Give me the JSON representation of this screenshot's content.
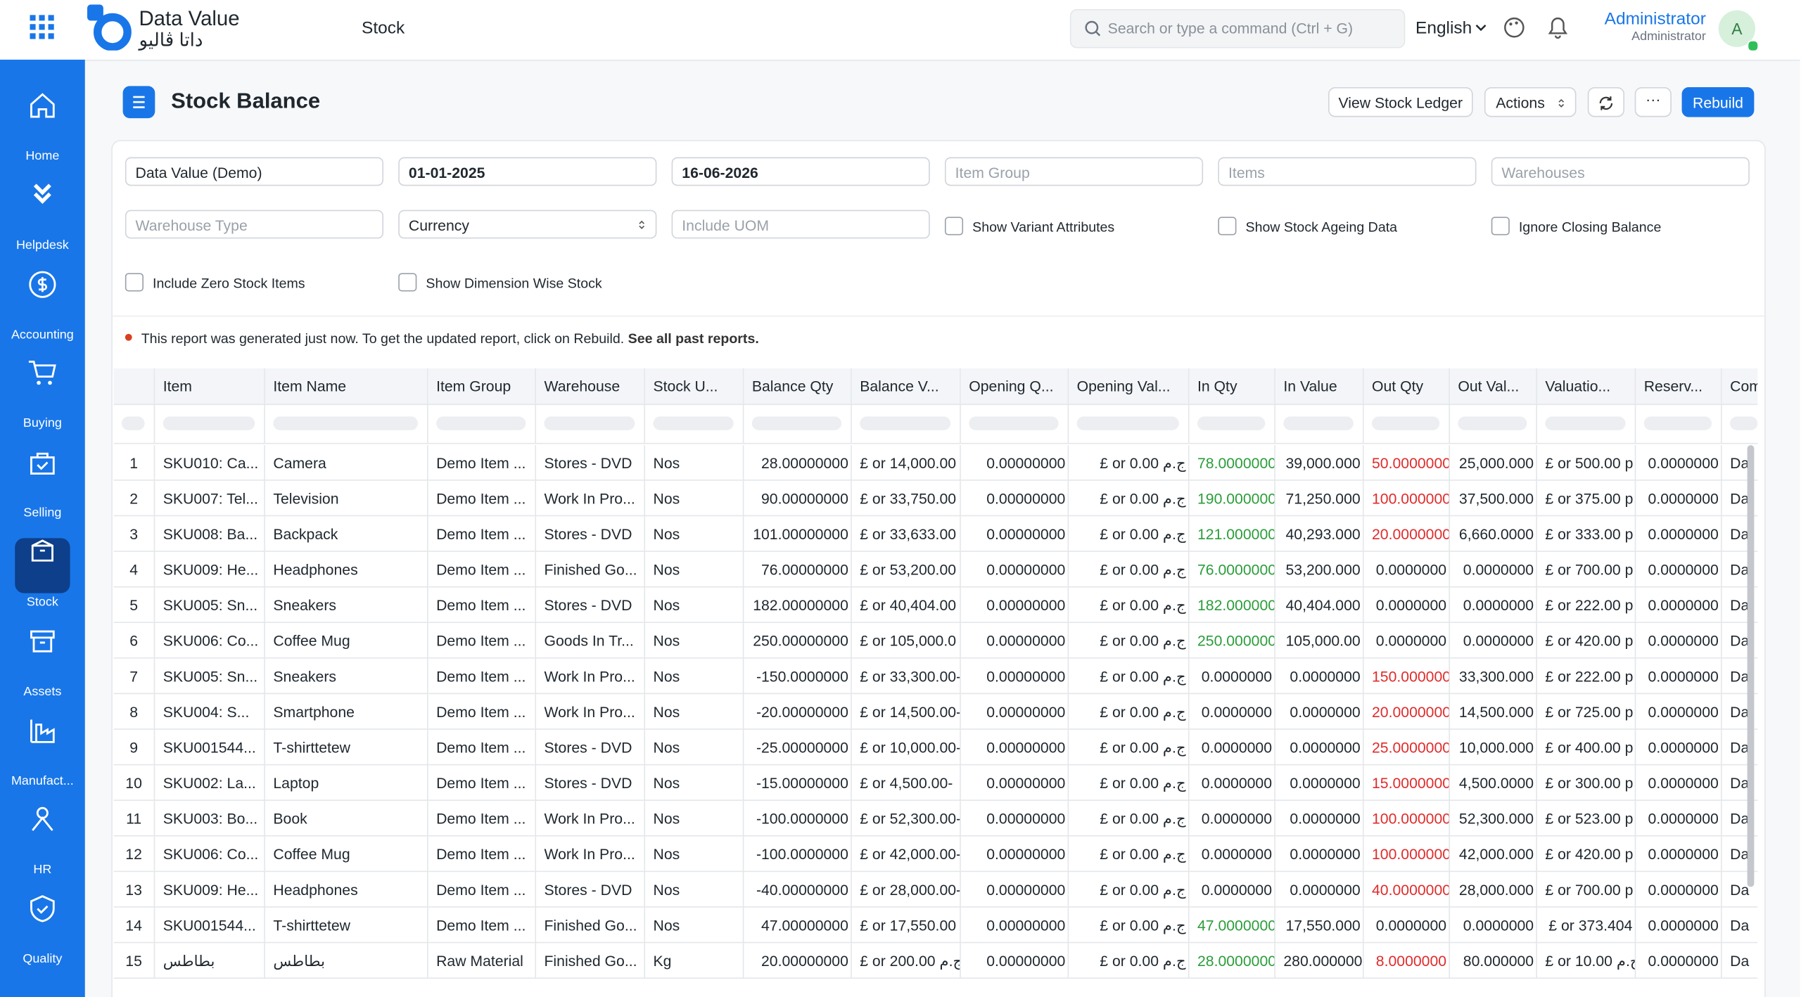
{
  "header": {
    "brand": "Data Value",
    "brand_ar": "داتا ڤاليو",
    "module": "Stock",
    "search_placeholder": "Search or type a command (Ctrl + G)",
    "language": "English",
    "user_name": "Administrator",
    "user_role": "Administrator",
    "avatar": "A"
  },
  "sidebar": [
    "Home",
    "Helpdesk",
    "Accounting",
    "Buying",
    "Selling",
    "Stock",
    "Assets",
    "Manufact...",
    "HR",
    "Quality"
  ],
  "page": {
    "title": "Stock Balance",
    "buttons": [
      "View Stock Ledger",
      "Actions",
      "Rebuild"
    ]
  },
  "filters": [
    {
      "label": "Data Value (Demo)",
      "kind": "input",
      "filled": true
    },
    {
      "label": "01-01-2025",
      "kind": "input",
      "filled": true
    },
    {
      "label": "16-06-2026",
      "kind": "input",
      "filled": true
    },
    {
      "label": "Item Group",
      "kind": "input",
      "filled": false
    },
    {
      "label": "Items",
      "kind": "input",
      "filled": false
    },
    {
      "label": "Warehouses",
      "kind": "input",
      "filled": false
    },
    {
      "label": "Warehouse Type",
      "kind": "input",
      "filled": false
    },
    {
      "label": "Currency",
      "kind": "select",
      "filled": true
    },
    {
      "label": "Include UOM",
      "kind": "input",
      "filled": false
    },
    {
      "label": "Show Variant Attributes",
      "kind": "check",
      "filled": false
    },
    {
      "label": "Show Stock Ageing Data",
      "kind": "check",
      "filled": false
    },
    {
      "label": "Ignore Closing Balance",
      "kind": "check",
      "filled": false
    },
    {
      "label": "Include Zero Stock Items",
      "kind": "check",
      "filled": false
    },
    {
      "label": "Show Dimension Wise Stock",
      "kind": "check",
      "filled": false
    }
  ],
  "notice": {
    "text": "This report was generated just now. To get the updated report, click on Rebuild.",
    "link": "See all past reports."
  },
  "table": {
    "columns": [
      "Item",
      "Item Name",
      "Item Group",
      "Warehouse",
      "Stock U...",
      "Balance Qty",
      "Balance V...",
      "Opening Q...",
      "Opening Val...",
      "In Qty",
      "In Value",
      "Out Qty",
      "Out Val...",
      "Valuatio...",
      "Reserv...",
      "Com"
    ],
    "rows": [
      [
        "1",
        "SKU010: Ca...",
        "Camera",
        "Demo Item ...",
        "Stores - DVD",
        "Nos",
        "28.00000000",
        "£ or 14,000.00",
        "0.00000000",
        "£ or 0.00 ج.م",
        "78.0000000",
        "39,000.000",
        "50.0000000",
        "25,000.000",
        "£ or 500.00 p",
        "0.0000000",
        "Da"
      ],
      [
        "2",
        "SKU007: Tel...",
        "Television",
        "Demo Item ...",
        "Work In Pro...",
        "Nos",
        "90.00000000",
        "£ or 33,750.00",
        "0.00000000",
        "£ or 0.00 ج.م",
        "190.000000",
        "71,250.000",
        "100.000000",
        "37,500.000",
        "£ or 375.00 p",
        "0.0000000",
        "Da"
      ],
      [
        "3",
        "SKU008: Ba...",
        "Backpack",
        "Demo Item ...",
        "Stores - DVD",
        "Nos",
        "101.00000000",
        "£ or 33,633.00",
        "0.00000000",
        "£ or 0.00 ج.م",
        "121.000000",
        "40,293.000",
        "20.0000000",
        "6,660.0000",
        "£ or 333.00 p",
        "0.0000000",
        "Da"
      ],
      [
        "4",
        "SKU009: He...",
        "Headphones",
        "Demo Item ...",
        "Finished Go...",
        "Nos",
        "76.00000000",
        "£ or 53,200.00",
        "0.00000000",
        "£ or 0.00 ج.م",
        "76.0000000",
        "53,200.000",
        "0.0000000",
        "0.0000000",
        "£ or 700.00 p",
        "0.0000000",
        "Da"
      ],
      [
        "5",
        "SKU005: Sn...",
        "Sneakers",
        "Demo Item ...",
        "Stores - DVD",
        "Nos",
        "182.00000000",
        "£ or 40,404.00",
        "0.00000000",
        "£ or 0.00 ج.م",
        "182.000000",
        "40,404.000",
        "0.0000000",
        "0.0000000",
        "£ or 222.00 p",
        "0.0000000",
        "Da"
      ],
      [
        "6",
        "SKU006: Co...",
        "Coffee Mug",
        "Demo Item ...",
        "Goods In Tr...",
        "Nos",
        "250.00000000",
        "£ or 105,000.0",
        "0.00000000",
        "£ or 0.00 ج.م",
        "250.000000",
        "105,000.00",
        "0.0000000",
        "0.0000000",
        "£ or 420.00 p",
        "0.0000000",
        "Da"
      ],
      [
        "7",
        "SKU005: Sn...",
        "Sneakers",
        "Demo Item ...",
        "Work In Pro...",
        "Nos",
        "-150.0000000",
        "£ or 33,300.00-",
        "0.00000000",
        "£ or 0.00 ج.م",
        "0.0000000",
        "0.0000000",
        "150.000000",
        "33,300.000",
        "£ or 222.00 p",
        "0.0000000",
        "Da"
      ],
      [
        "8",
        "SKU004: S...",
        "Smartphone",
        "Demo Item ...",
        "Work In Pro...",
        "Nos",
        "-20.00000000",
        "£ or 14,500.00-",
        "0.00000000",
        "£ or 0.00 ج.م",
        "0.0000000",
        "0.0000000",
        "20.0000000",
        "14,500.000",
        "£ or 725.00 p",
        "0.0000000",
        "Da"
      ],
      [
        "9",
        "SKU001544...",
        "T-shirttetew",
        "Demo Item ...",
        "Stores - DVD",
        "Nos",
        "-25.00000000",
        "£ or 10,000.00-",
        "0.00000000",
        "£ or 0.00 ج.م",
        "0.0000000",
        "0.0000000",
        "25.0000000",
        "10,000.000",
        "£ or 400.00 p",
        "0.0000000",
        "Da"
      ],
      [
        "10",
        "SKU002: La...",
        "Laptop",
        "Demo Item ...",
        "Stores - DVD",
        "Nos",
        "-15.00000000",
        "£ or 4,500.00-",
        "0.00000000",
        "£ or 0.00 ج.م",
        "0.0000000",
        "0.0000000",
        "15.0000000",
        "4,500.0000",
        "£ or 300.00 p",
        "0.0000000",
        "Da"
      ],
      [
        "11",
        "SKU003: Bo...",
        "Book",
        "Demo Item ...",
        "Work In Pro...",
        "Nos",
        "-100.0000000",
        "£ or 52,300.00-",
        "0.00000000",
        "£ or 0.00 ج.م",
        "0.0000000",
        "0.0000000",
        "100.000000",
        "52,300.000",
        "£ or 523.00 p",
        "0.0000000",
        "Da"
      ],
      [
        "12",
        "SKU006: Co...",
        "Coffee Mug",
        "Demo Item ...",
        "Work In Pro...",
        "Nos",
        "-100.0000000",
        "£ or 42,000.00-",
        "0.00000000",
        "£ or 0.00 ج.م",
        "0.0000000",
        "0.0000000",
        "100.000000",
        "42,000.000",
        "£ or 420.00 p",
        "0.0000000",
        "Da"
      ],
      [
        "13",
        "SKU009: He...",
        "Headphones",
        "Demo Item ...",
        "Stores - DVD",
        "Nos",
        "-40.00000000",
        "£ or 28,000.00-",
        "0.00000000",
        "£ or 0.00 ج.م",
        "0.0000000",
        "0.0000000",
        "40.0000000",
        "28,000.000",
        "£ or 700.00 p",
        "0.0000000",
        "Da"
      ],
      [
        "14",
        "SKU001544...",
        "T-shirttetew",
        "Demo Item ...",
        "Finished Go...",
        "Nos",
        "47.00000000",
        "£ or 17,550.00",
        "0.00000000",
        "£ or 0.00 ج.م",
        "47.0000000",
        "17,550.000",
        "0.0000000",
        "0.0000000",
        "£ or 373.404",
        "0.0000000",
        "Da"
      ],
      [
        "15",
        "بطاطس",
        "بطاطس",
        "Raw Material",
        "Finished Go...",
        "Kg",
        "20.00000000",
        "£ or 200.00 ج.م",
        "0.00000000",
        "£ or 0.00 ج.م",
        "28.0000000",
        "280.000000",
        "8.0000000",
        "80.000000",
        "£ or 10.00 ج.م",
        "0.0000000",
        "Da"
      ]
    ]
  }
}
